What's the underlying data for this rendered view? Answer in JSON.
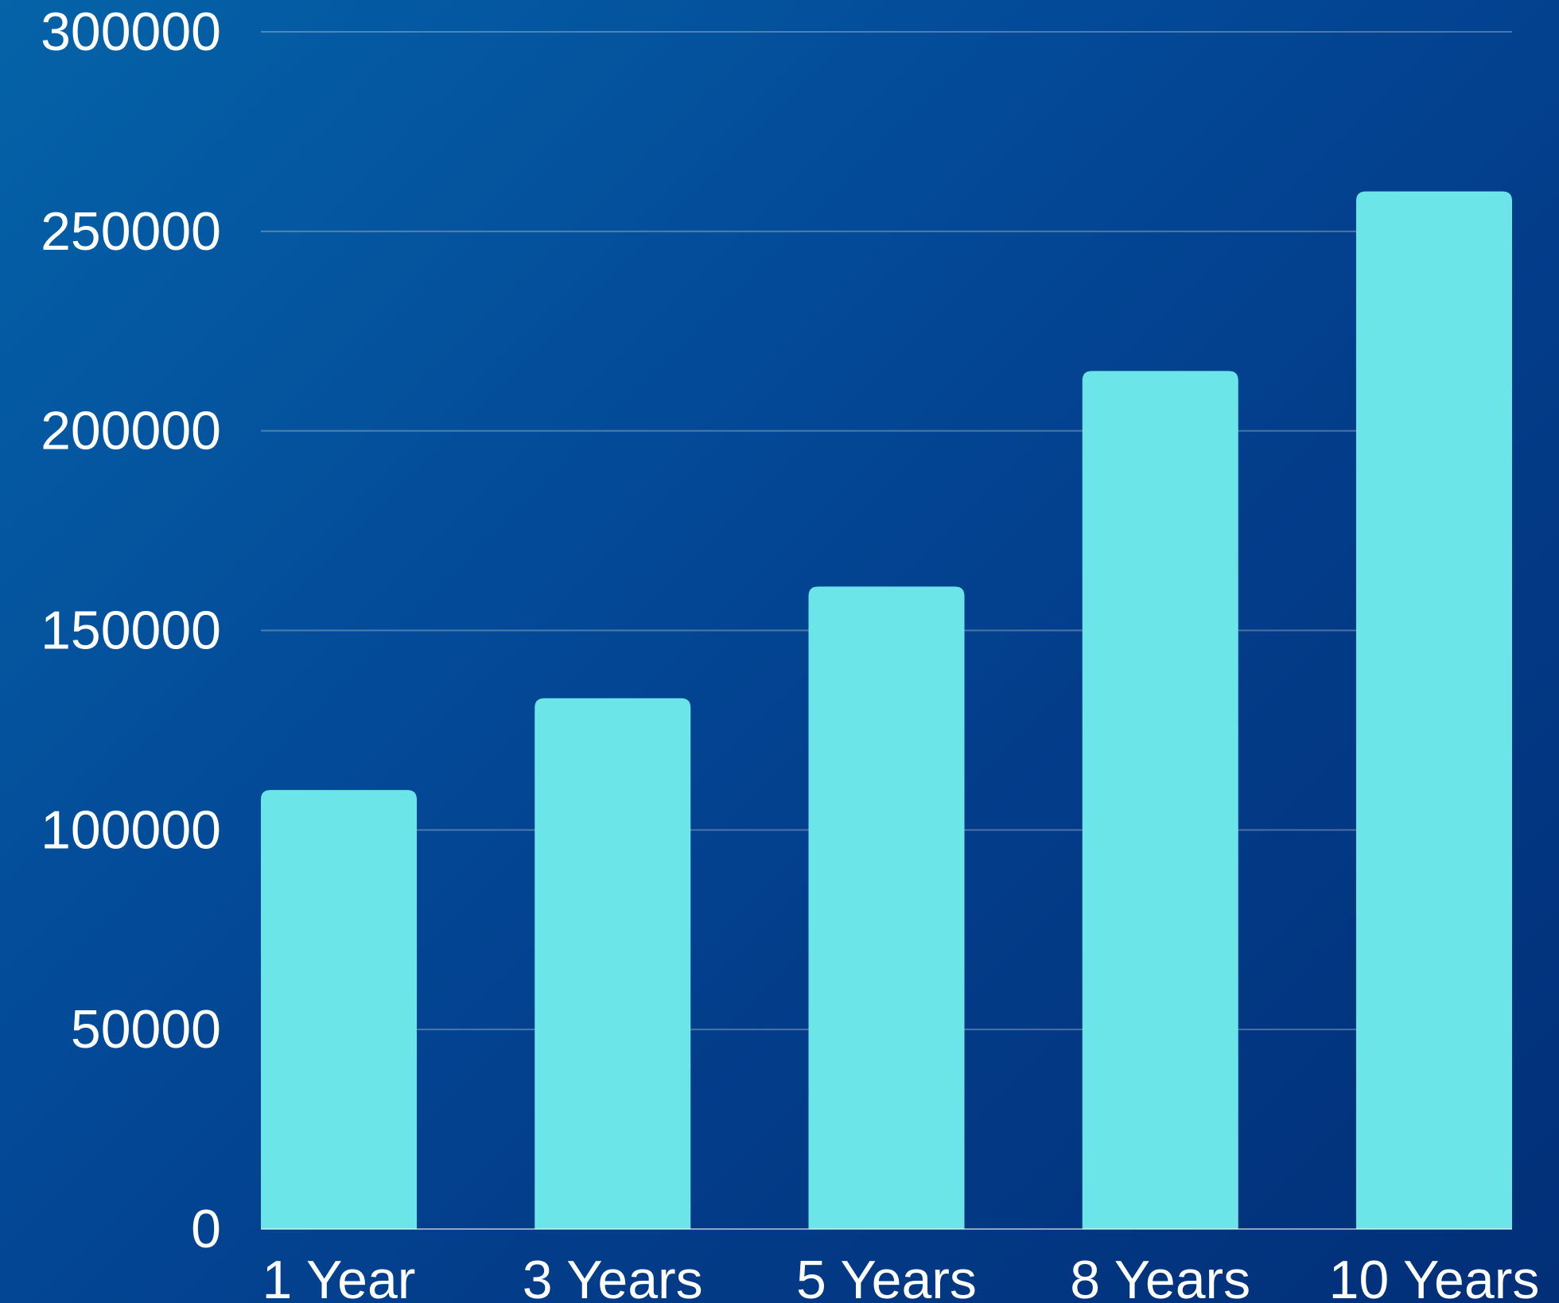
{
  "chart_data": {
    "type": "bar",
    "title": "",
    "xlabel": "",
    "ylabel": "",
    "categories": [
      "1 Year",
      "3 Years",
      "5 Years",
      "8 Years",
      "10 Years"
    ],
    "values": [
      110000,
      133000,
      161000,
      215000,
      260000
    ],
    "ylim": [
      0,
      300000
    ],
    "yticks": [
      0,
      50000,
      100000,
      150000,
      200000,
      250000,
      300000
    ],
    "ytick_labels": [
      "0",
      "50000",
      "100000",
      "150000",
      "200000",
      "250000",
      "300000"
    ],
    "grid": true,
    "legend": "none",
    "colors": {
      "bar": "#6ce5e8",
      "text": "#ffffff",
      "background": "#034a98"
    }
  }
}
